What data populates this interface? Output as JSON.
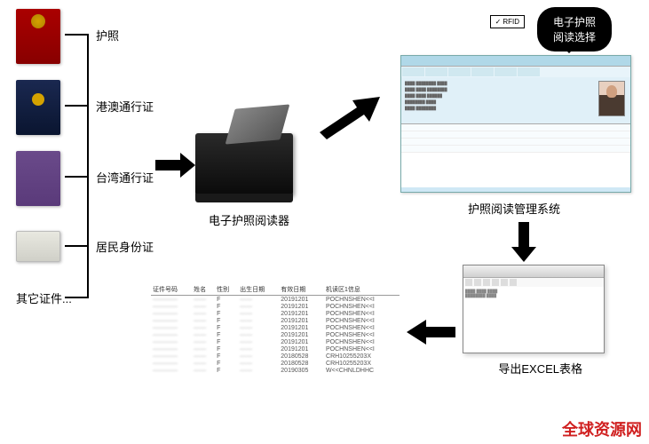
{
  "docs": {
    "passport_label": "护照",
    "hk_macau_label": "港澳通行证",
    "taiwan_label": "台湾通行证",
    "id_card_label": "居民身份证",
    "other_label": "其它证件...",
    "colors": {
      "passport": "#880000",
      "hk_macau": "#0a1530",
      "taiwan": "#5a3a7a",
      "id_card": "#d0d0c8"
    }
  },
  "reader": {
    "caption": "电子护照阅读器"
  },
  "bubble": {
    "line1": "电子护照",
    "line2": "阅读选择",
    "rfid": "RFID"
  },
  "software": {
    "caption": "护照阅读管理系统"
  },
  "export": {
    "caption": "导出EXCEL表格"
  },
  "table": {
    "headers": [
      "证件号码",
      "姓名",
      "性别",
      "出生日期",
      "有效日期",
      "机读区1信息"
    ],
    "rows": [
      [
        "————",
        "——",
        "F",
        "——",
        "20191201",
        "POCHNSHEN<<I"
      ],
      [
        "————",
        "——",
        "F",
        "——",
        "20191201",
        "POCHNSHEN<<I"
      ],
      [
        "————",
        "——",
        "F",
        "——",
        "20191201",
        "POCHNSHEN<<I"
      ],
      [
        "————",
        "——",
        "F",
        "——",
        "20191201",
        "POCHNSHEN<<I"
      ],
      [
        "————",
        "——",
        "F",
        "——",
        "20191201",
        "POCHNSHEN<<I"
      ],
      [
        "————",
        "——",
        "F",
        "——",
        "20191201",
        "POCHNSHEN<<I"
      ],
      [
        "————",
        "——",
        "F",
        "——",
        "20191201",
        "POCHNSHEN<<I"
      ],
      [
        "————",
        "——",
        "F",
        "——",
        "20191201",
        "POCHNSHEN<<I"
      ],
      [
        "————",
        "——",
        "F",
        "——",
        "20180528",
        "CRH10255203X"
      ],
      [
        "————",
        "——",
        "F",
        "——",
        "20180528",
        "CRH10255203X"
      ],
      [
        "————",
        "——",
        "F",
        "——",
        "20190305",
        "W<<CHNLDHHC"
      ]
    ]
  },
  "watermark": "全球资源网",
  "colors": {
    "arrow": "#000000",
    "bracket": "#000000",
    "watermark": "#d02020"
  }
}
